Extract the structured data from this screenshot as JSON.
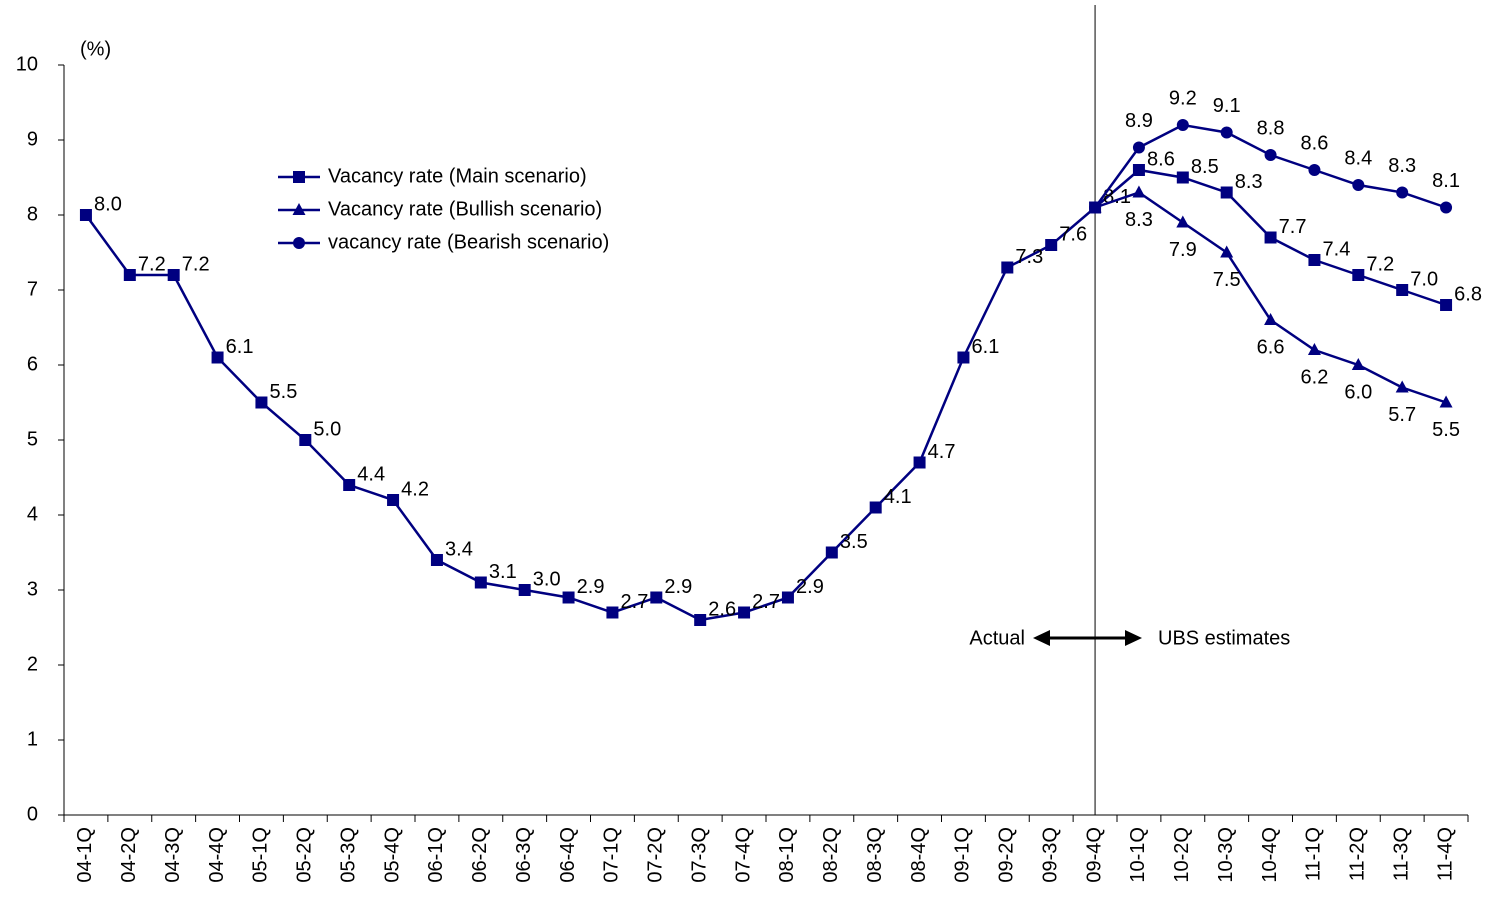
{
  "chart_data": {
    "type": "line",
    "y_unit_label": "(%)",
    "categories": [
      "04-1Q",
      "04-2Q",
      "04-3Q",
      "04-4Q",
      "05-1Q",
      "05-2Q",
      "05-3Q",
      "05-4Q",
      "06-1Q",
      "06-2Q",
      "06-3Q",
      "06-4Q",
      "07-1Q",
      "07-2Q",
      "07-3Q",
      "07-4Q",
      "08-1Q",
      "08-2Q",
      "08-3Q",
      "08-4Q",
      "09-1Q",
      "09-2Q",
      "09-3Q",
      "09-4Q",
      "10-1Q",
      "10-2Q",
      "10-3Q",
      "10-4Q",
      "11-1Q",
      "11-2Q",
      "11-3Q",
      "11-4Q"
    ],
    "series": [
      {
        "name": "Vacancy rate (Main scenario)",
        "color": "#000080",
        "marker": "square",
        "values": [
          8.0,
          7.2,
          7.2,
          6.1,
          5.5,
          5.0,
          4.4,
          4.2,
          3.4,
          3.1,
          3.0,
          2.9,
          2.7,
          2.9,
          2.6,
          2.7,
          2.9,
          3.5,
          4.1,
          4.7,
          6.1,
          7.3,
          7.6,
          8.1,
          8.6,
          8.5,
          8.3,
          7.7,
          7.4,
          7.2,
          7.0,
          6.8
        ],
        "value_labels": [
          "8.0",
          "7.2",
          "7.2",
          "6.1",
          "5.5",
          "5.0",
          "4.4",
          "4.2",
          "3.4",
          "3.1",
          "3.0",
          "2.9",
          "2.7",
          "2.9",
          "2.6",
          "2.7",
          "2.9",
          "3.5",
          "4.1",
          "4.7",
          "6.1",
          "7.3",
          "7.6",
          "8.1",
          "8.6",
          "8.5",
          "8.3",
          "7.7",
          "7.4",
          "7.2",
          "7.0",
          "6.8"
        ]
      },
      {
        "name": "Vacancy rate (Bullish scenario)",
        "color": "#000080",
        "marker": "triangle",
        "values": [
          null,
          null,
          null,
          null,
          null,
          null,
          null,
          null,
          null,
          null,
          null,
          null,
          null,
          null,
          null,
          null,
          null,
          null,
          null,
          null,
          null,
          null,
          null,
          8.1,
          8.3,
          7.9,
          7.5,
          6.6,
          6.2,
          6.0,
          5.7,
          5.5
        ],
        "value_labels": [
          null,
          null,
          null,
          null,
          null,
          null,
          null,
          null,
          null,
          null,
          null,
          null,
          null,
          null,
          null,
          null,
          null,
          null,
          null,
          null,
          null,
          null,
          null,
          null,
          "8.3",
          "7.9",
          "7.5",
          "6.6",
          "6.2",
          "6.0",
          "5.7",
          "5.5"
        ]
      },
      {
        "name": "vacancy rate (Bearish scenario)",
        "color": "#000080",
        "marker": "circle",
        "values": [
          null,
          null,
          null,
          null,
          null,
          null,
          null,
          null,
          null,
          null,
          null,
          null,
          null,
          null,
          null,
          null,
          null,
          null,
          null,
          null,
          null,
          null,
          null,
          8.1,
          8.9,
          9.2,
          9.1,
          8.8,
          8.6,
          8.4,
          8.3,
          8.1
        ],
        "value_labels": [
          null,
          null,
          null,
          null,
          null,
          null,
          null,
          null,
          null,
          null,
          null,
          null,
          null,
          null,
          null,
          null,
          null,
          null,
          null,
          null,
          null,
          null,
          null,
          null,
          "8.9",
          "9.2",
          "9.1",
          "8.8",
          "8.6",
          "8.4",
          "8.3",
          "8.1"
        ]
      }
    ],
    "ylim": [
      0,
      10
    ],
    "yticks": [
      0,
      1,
      2,
      3,
      4,
      5,
      6,
      7,
      8,
      9,
      10
    ],
    "grid": false,
    "legend": "upper-left",
    "annotations": [
      "Actual",
      "UBS estimates"
    ]
  }
}
